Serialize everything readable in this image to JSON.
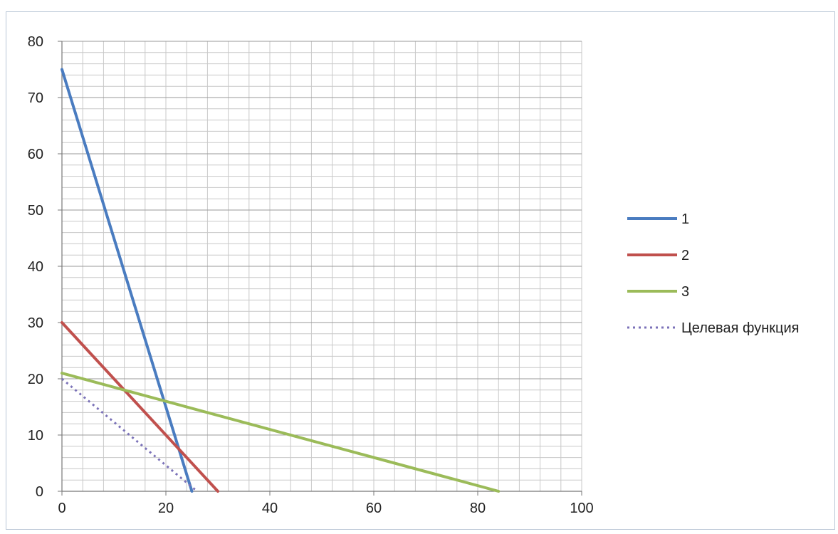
{
  "chart_data": {
    "type": "line",
    "title": "",
    "xlabel": "",
    "ylabel": "",
    "xlim": [
      0,
      100
    ],
    "ylim": [
      0,
      80
    ],
    "x_ticks": [
      0,
      20,
      40,
      60,
      80,
      100
    ],
    "y_ticks": [
      0,
      10,
      20,
      30,
      40,
      50,
      60,
      70,
      80
    ],
    "x_minor_step": 4,
    "y_minor_step": 2,
    "grid": true,
    "legend_position": "right",
    "series": [
      {
        "name": "1",
        "color": "#4a7cc0",
        "style": "solid",
        "x": [
          0,
          25
        ],
        "y": [
          75,
          0
        ]
      },
      {
        "name": "2",
        "color": "#c0504d",
        "style": "solid",
        "x": [
          0,
          30
        ],
        "y": [
          30,
          0
        ]
      },
      {
        "name": "3",
        "color": "#9bbb59",
        "style": "solid",
        "x": [
          0,
          84
        ],
        "y": [
          21,
          0
        ]
      },
      {
        "name": "Целевая функция",
        "color": "#7b72b8",
        "style": "dotted",
        "x": [
          0,
          26
        ],
        "y": [
          20,
          0
        ]
      }
    ]
  }
}
